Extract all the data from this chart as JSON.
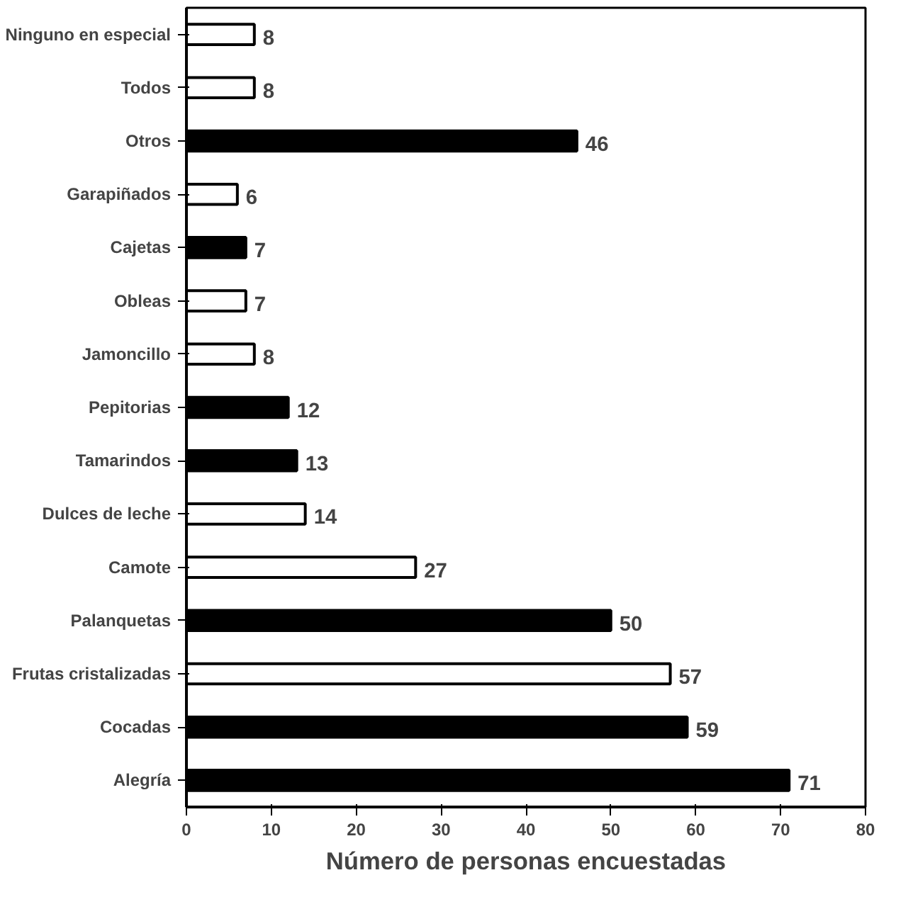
{
  "chart_data": {
    "type": "bar",
    "orientation": "horizontal",
    "xlabel": "Número de personas encuestadas",
    "categories": [
      "Ninguno en especial",
      "Todos",
      "Otros",
      "Garapiñados",
      "Cajetas",
      "Obleas",
      "Jamoncillo",
      "Pepitorias",
      "Tamarindos",
      "Dulces de leche",
      "Camote",
      "Palanquetas",
      "Frutas cristalizadas",
      "Cocadas",
      "Alegría"
    ],
    "values": [
      8,
      8,
      46,
      6,
      7,
      7,
      8,
      12,
      13,
      14,
      27,
      50,
      57,
      59,
      71
    ],
    "colors": [
      "#ffffff",
      "#ffffff",
      "#000000",
      "#ffffff",
      "#000000",
      "#ffffff",
      "#ffffff",
      "#000000",
      "#000000",
      "#ffffff",
      "#ffffff",
      "#000000",
      "#ffffff",
      "#000000",
      "#000000"
    ],
    "data_labels": true,
    "xlim": [
      0,
      80
    ],
    "xticks": [
      0,
      10,
      20,
      30,
      40,
      50,
      60,
      70,
      80
    ],
    "grid": false
  }
}
